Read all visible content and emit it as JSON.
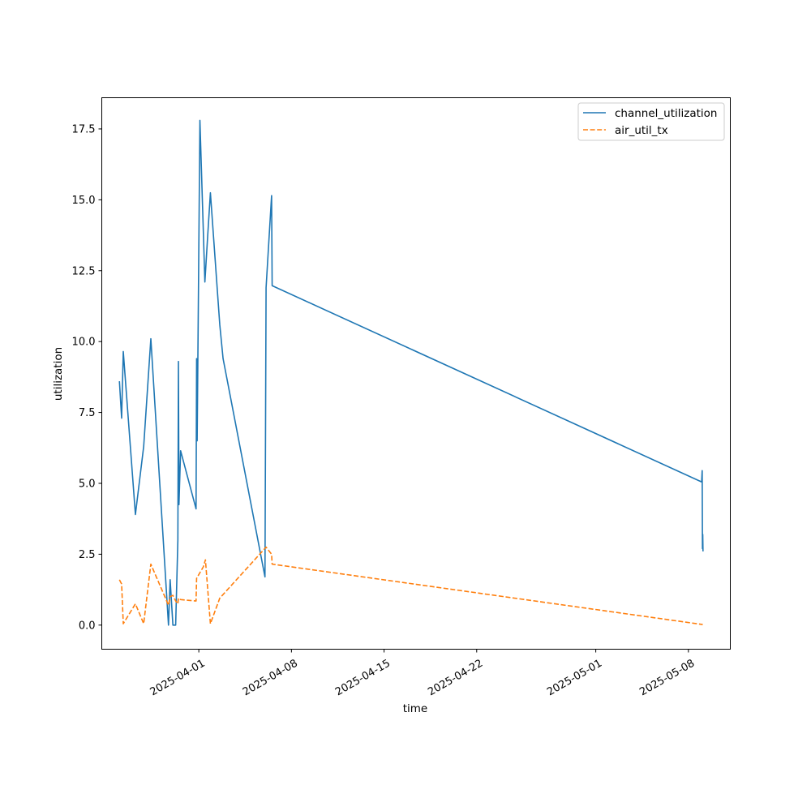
{
  "chart_data": {
    "type": "line",
    "title": "",
    "xlabel": "time",
    "ylabel": "utilization",
    "x_axis_type": "date",
    "xlim": [
      "2025-03-24T16:00",
      "2025-05-11T04:00"
    ],
    "ylim": [
      -0.85,
      18.6
    ],
    "x_ticks": [
      {
        "date": "2025-04-01",
        "label": "2025-04-01"
      },
      {
        "date": "2025-04-08",
        "label": "2025-04-08"
      },
      {
        "date": "2025-04-15",
        "label": "2025-04-15"
      },
      {
        "date": "2025-04-22",
        "label": "2025-04-22"
      },
      {
        "date": "2025-05-01",
        "label": "2025-05-01"
      },
      {
        "date": "2025-05-08",
        "label": "2025-05-08"
      }
    ],
    "y_ticks": [
      {
        "value": 0.0,
        "label": "0.0"
      },
      {
        "value": 2.5,
        "label": "2.5"
      },
      {
        "value": 5.0,
        "label": "5.0"
      },
      {
        "value": 7.5,
        "label": "7.5"
      },
      {
        "value": 10.0,
        "label": "10.0"
      },
      {
        "value": 12.5,
        "label": "12.5"
      },
      {
        "value": 15.0,
        "label": "15.0"
      },
      {
        "value": 17.5,
        "label": "17.5"
      }
    ],
    "grid": false,
    "legend_position": "top-right",
    "series": [
      {
        "name": "channel_utilization",
        "color": "#1f77b4",
        "dash": "solid",
        "points": [
          {
            "x": "2025-03-26T00:00",
            "y": 8.6
          },
          {
            "x": "2025-03-26T04:00",
            "y": 7.3
          },
          {
            "x": "2025-03-26T07:00",
            "y": 9.65
          },
          {
            "x": "2025-03-27T05:00",
            "y": 3.9
          },
          {
            "x": "2025-03-27T20:00",
            "y": 6.3
          },
          {
            "x": "2025-03-28T09:00",
            "y": 10.1
          },
          {
            "x": "2025-03-29T17:00",
            "y": 0.0
          },
          {
            "x": "2025-03-29T20:00",
            "y": 1.6
          },
          {
            "x": "2025-03-30T01:00",
            "y": 0.0
          },
          {
            "x": "2025-03-30T06:00",
            "y": 0.0
          },
          {
            "x": "2025-03-30T10:00",
            "y": 3.0
          },
          {
            "x": "2025-03-30T11:00",
            "y": 9.3
          },
          {
            "x": "2025-03-30T12:00",
            "y": 4.25
          },
          {
            "x": "2025-03-30T15:00",
            "y": 6.15
          },
          {
            "x": "2025-03-31T19:00",
            "y": 4.1
          },
          {
            "x": "2025-03-31T20:00",
            "y": 9.4
          },
          {
            "x": "2025-03-31T21:00",
            "y": 6.5
          },
          {
            "x": "2025-04-01T02:00",
            "y": 17.8
          },
          {
            "x": "2025-04-01T11:00",
            "y": 12.1
          },
          {
            "x": "2025-04-01T16:00",
            "y": 13.7
          },
          {
            "x": "2025-04-01T21:00",
            "y": 15.25
          },
          {
            "x": "2025-04-02T14:00",
            "y": 10.6
          },
          {
            "x": "2025-04-02T20:00",
            "y": 9.4
          },
          {
            "x": "2025-04-06T00:00",
            "y": 1.7
          },
          {
            "x": "2025-04-06T02:00",
            "y": 11.9
          },
          {
            "x": "2025-04-06T12:00",
            "y": 15.15
          },
          {
            "x": "2025-04-06T13:00",
            "y": 11.97
          },
          {
            "x": "2025-05-09T00:00",
            "y": 5.05
          },
          {
            "x": "2025-05-09T01:00",
            "y": 5.45
          },
          {
            "x": "2025-05-09T01:30",
            "y": 2.7
          },
          {
            "x": "2025-05-09T02:00",
            "y": 3.2
          },
          {
            "x": "2025-05-09T02:30",
            "y": 2.6
          }
        ]
      },
      {
        "name": "air_util_tx",
        "color": "#ff7f0e",
        "dash": "dashed",
        "points": [
          {
            "x": "2025-03-26T00:00",
            "y": 1.6
          },
          {
            "x": "2025-03-26T04:00",
            "y": 1.45
          },
          {
            "x": "2025-03-26T07:00",
            "y": 0.05
          },
          {
            "x": "2025-03-27T05:00",
            "y": 0.75
          },
          {
            "x": "2025-03-27T20:00",
            "y": 0.05
          },
          {
            "x": "2025-03-28T09:00",
            "y": 2.15
          },
          {
            "x": "2025-03-29T17:00",
            "y": 0.7
          },
          {
            "x": "2025-03-29T20:00",
            "y": 1.0
          },
          {
            "x": "2025-03-30T01:00",
            "y": 1.05
          },
          {
            "x": "2025-03-30T06:00",
            "y": 0.85
          },
          {
            "x": "2025-03-30T10:00",
            "y": 0.75
          },
          {
            "x": "2025-03-30T11:00",
            "y": 0.95
          },
          {
            "x": "2025-03-30T15:00",
            "y": 0.9
          },
          {
            "x": "2025-03-31T19:00",
            "y": 0.85
          },
          {
            "x": "2025-03-31T20:00",
            "y": 1.65
          },
          {
            "x": "2025-04-01T08:00",
            "y": 2.05
          },
          {
            "x": "2025-04-01T12:00",
            "y": 2.3
          },
          {
            "x": "2025-04-01T21:00",
            "y": 0.05
          },
          {
            "x": "2025-04-02T14:00",
            "y": 0.95
          },
          {
            "x": "2025-04-06T02:00",
            "y": 2.75
          },
          {
            "x": "2025-04-06T12:00",
            "y": 2.5
          },
          {
            "x": "2025-04-06T13:00",
            "y": 2.15
          },
          {
            "x": "2025-05-09T02:00",
            "y": 0.02
          }
        ]
      }
    ]
  }
}
